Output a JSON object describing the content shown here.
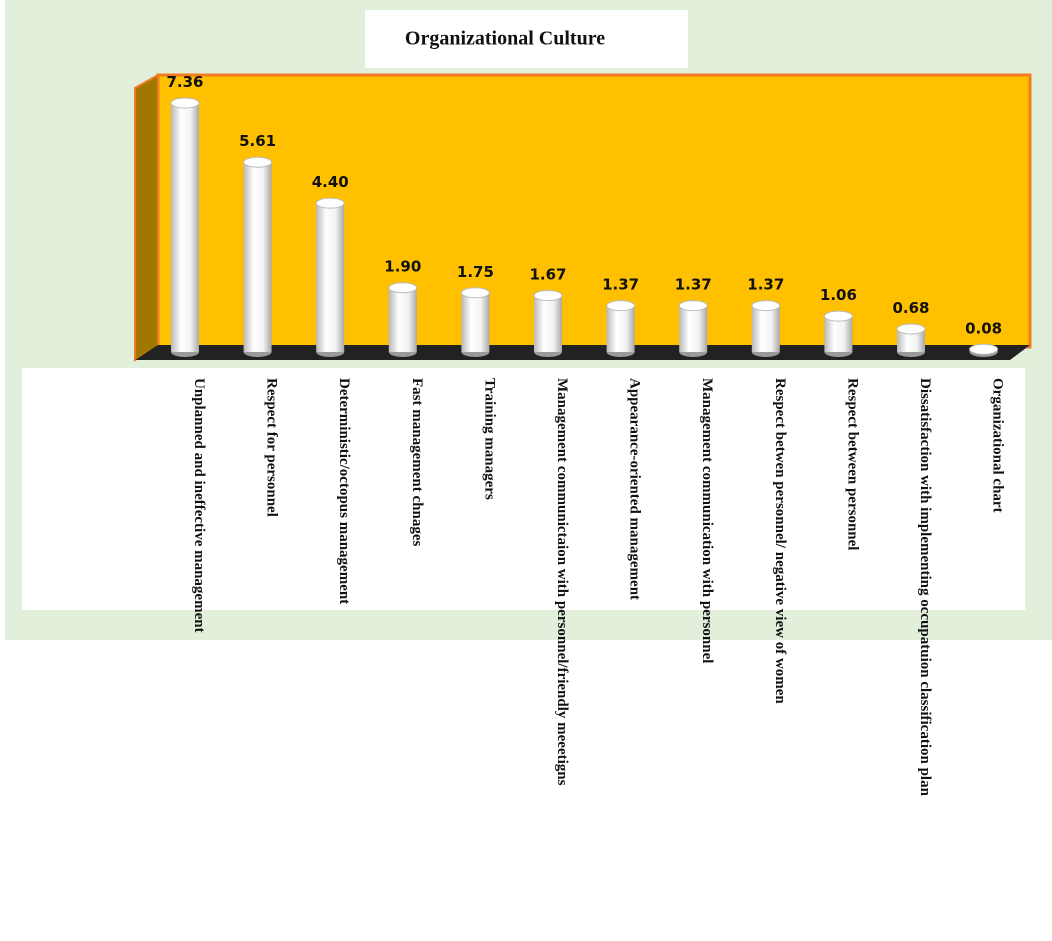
{
  "chart_data": {
    "type": "bar",
    "title": "Organizational Culture",
    "categories": [
      "Unplanned and ineffective management",
      "Respect for personnel",
      "Deterministic/octopus management",
      "Fast management chnages",
      "Training managers",
      "Management communictaion with personnel/friendly meeetigns",
      "Appearance-oriented management",
      "Management communication with personnel",
      "Respect betwen personnel/ negative view of women",
      "Respect between personnel",
      "Dissatisfaction with implementing occupatuion classification plan",
      "Organizational chart"
    ],
    "values": [
      7.36,
      5.61,
      4.4,
      1.9,
      1.75,
      1.67,
      1.37,
      1.37,
      1.37,
      1.06,
      0.68,
      0.08
    ],
    "value_labels": [
      "7.36",
      "5.61",
      "4.40",
      "1.90",
      "1.75",
      "1.67",
      "1.37",
      "1.37",
      "1.37",
      "1.06",
      "0.68",
      "0.08"
    ],
    "color": "#ffffff",
    "background": "#ffc000"
  }
}
